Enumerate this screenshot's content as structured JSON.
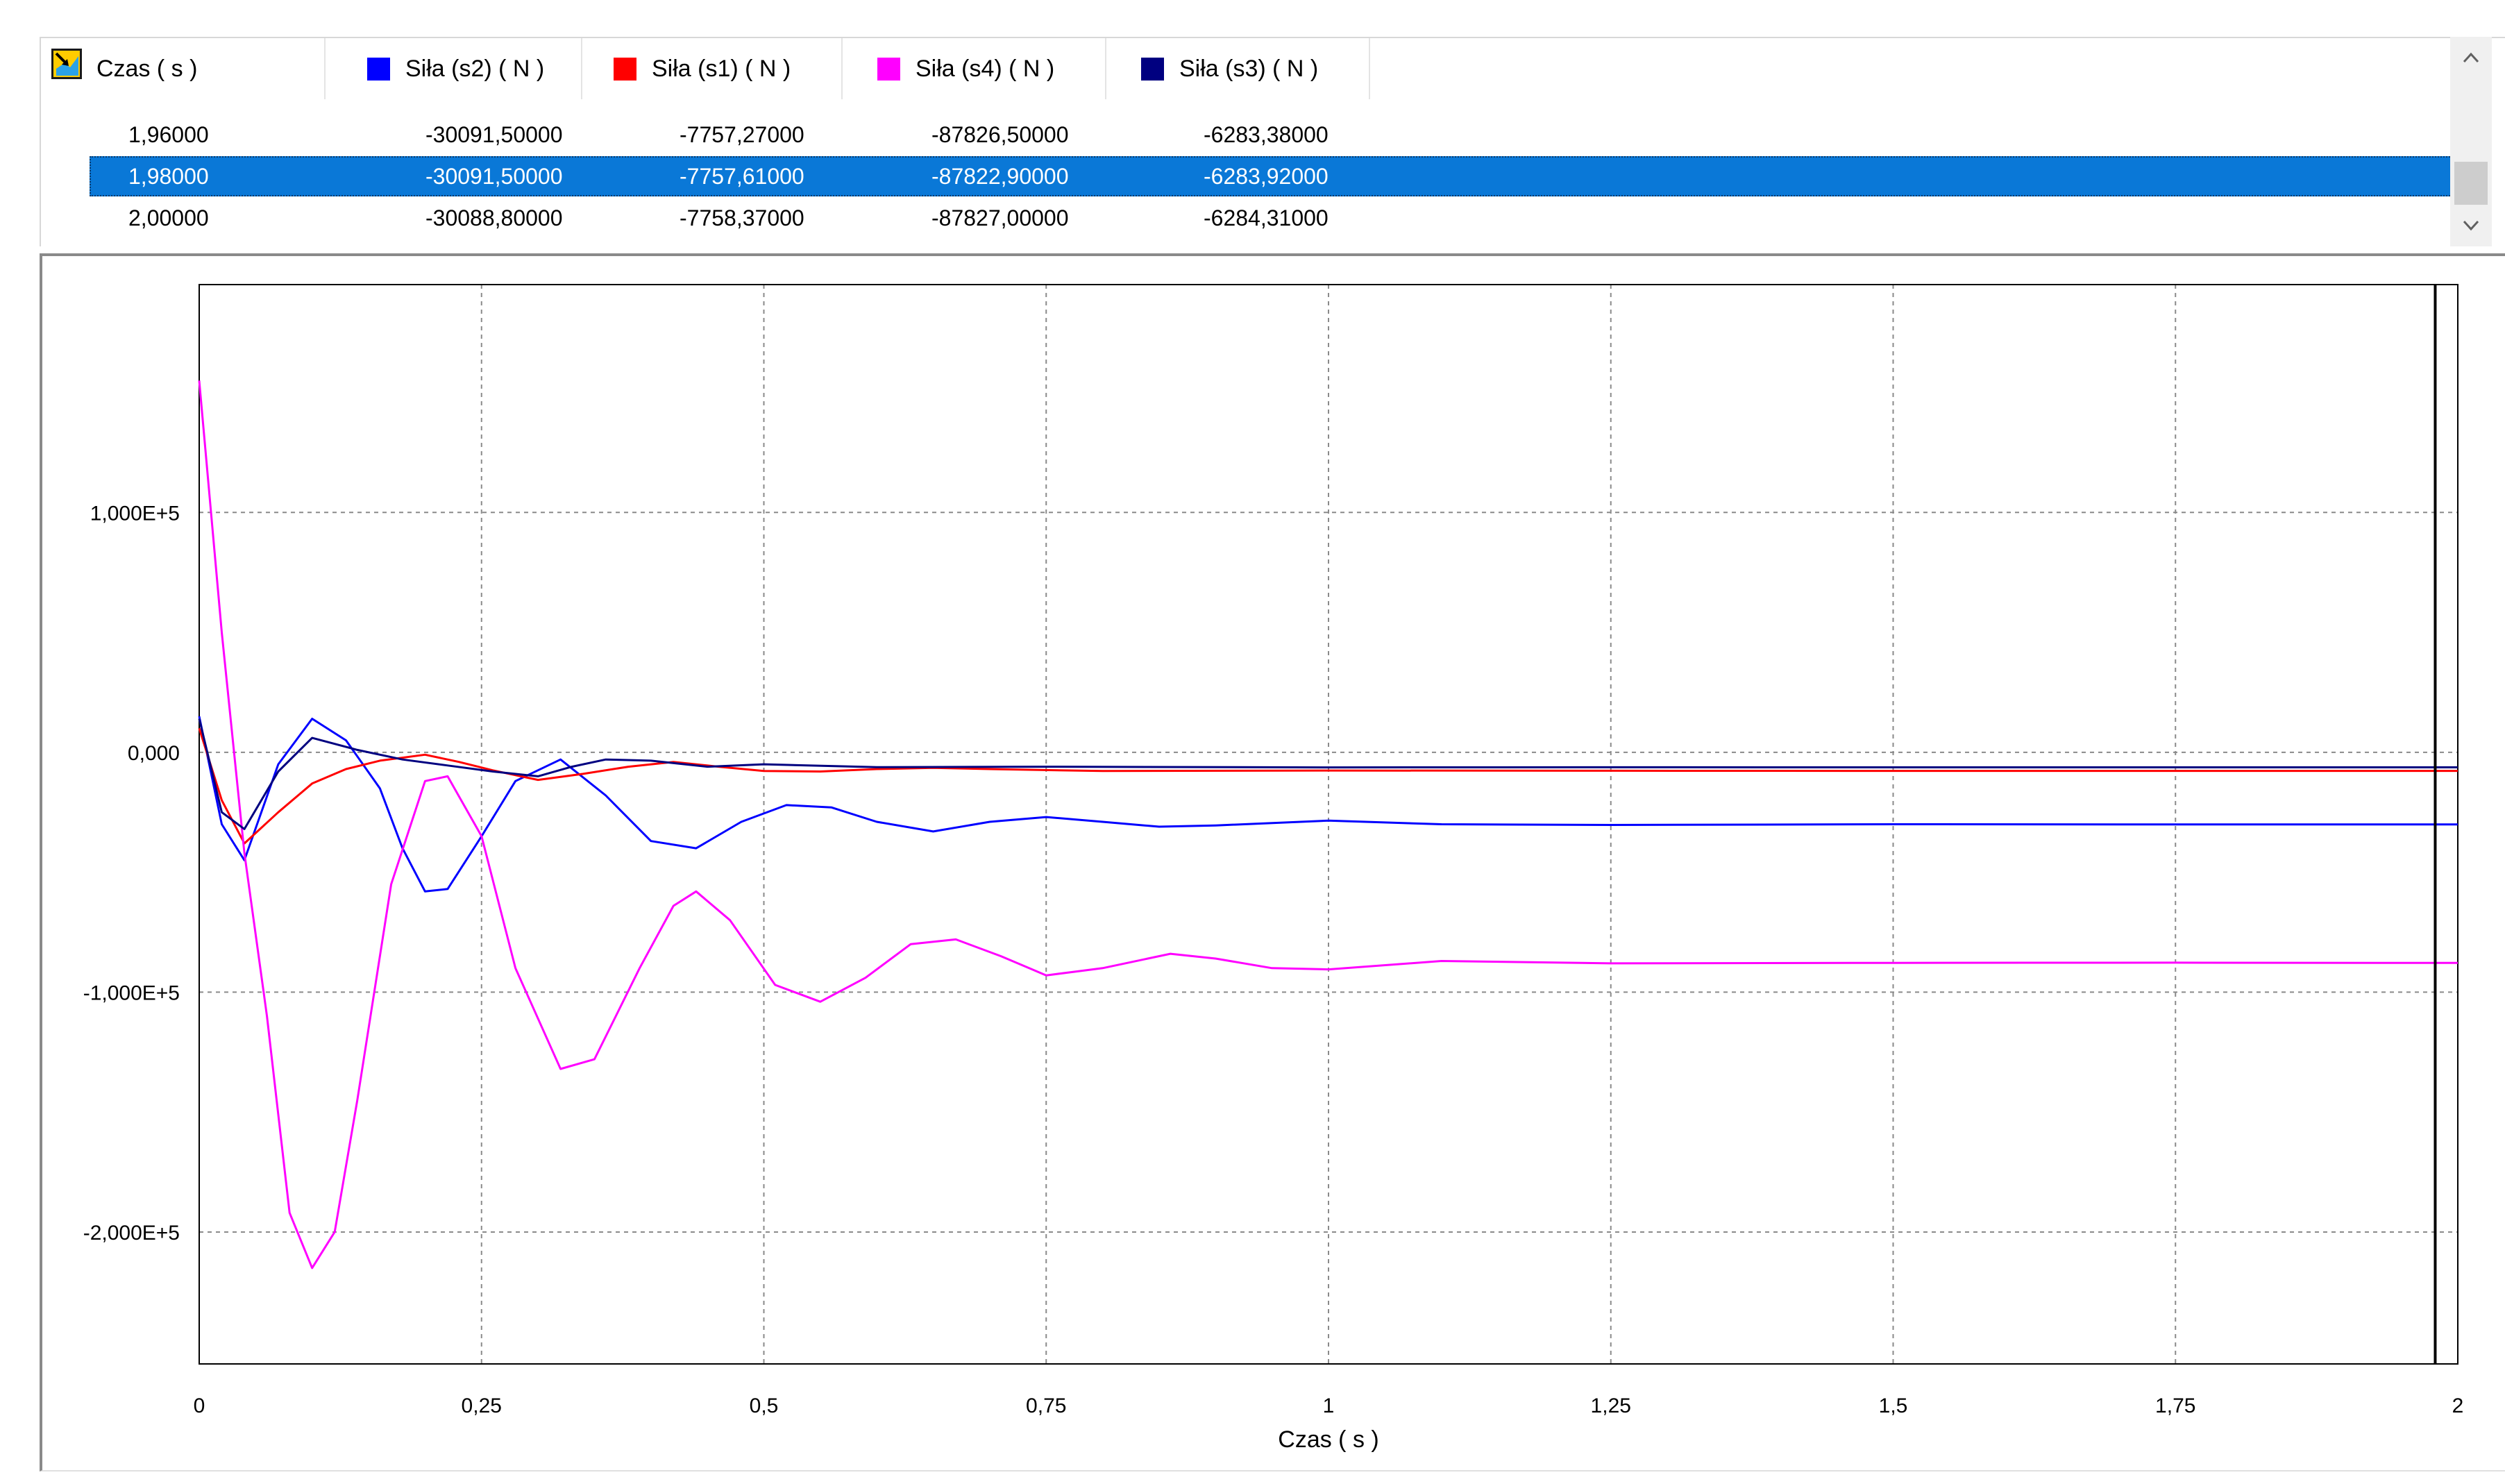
{
  "grid": {
    "columns": [
      {
        "label": "Czas ( s )",
        "color": ""
      },
      {
        "label": "Siła (s2) ( N )",
        "color": "#0000ff"
      },
      {
        "label": "Siła (s1) ( N )",
        "color": "#ff0000"
      },
      {
        "label": "Siła (s4) ( N )",
        "color": "#ff00ff"
      },
      {
        "label": "Siła (s3) ( N )",
        "color": "#000080"
      }
    ],
    "rows": [
      {
        "cells": [
          "1,96000",
          "-30091,50000",
          "-7757,27000",
          "-87826,50000",
          "-6283,38000"
        ],
        "selected": false
      },
      {
        "cells": [
          "1,98000",
          "-30091,50000",
          "-7757,61000",
          "-87822,90000",
          "-6283,92000"
        ],
        "selected": true
      },
      {
        "cells": [
          "2,00000",
          "-30088,80000",
          "-7758,37000",
          "-87827,00000",
          "-6284,31000"
        ],
        "selected": false
      }
    ],
    "scroll_up_icon": "chevron-up-icon",
    "scroll_down_icon": "chevron-down-icon"
  },
  "chart_data": {
    "type": "line",
    "xlabel": "Czas ( s )",
    "ylabel": "",
    "xlim": [
      0,
      2
    ],
    "ylim": [
      -255000,
      195000
    ],
    "grid": true,
    "x_ticks": [
      0,
      0.25,
      0.5,
      0.75,
      1,
      1.25,
      1.5,
      1.75,
      2
    ],
    "x_tick_labels": [
      "0",
      "0,25",
      "0,5",
      "0,75",
      "1",
      "1,25",
      "1,5",
      "1,75",
      "2"
    ],
    "y_ticks": [
      100000,
      0,
      -100000,
      -200000
    ],
    "y_tick_labels": [
      "1,000E+5",
      "0,000",
      "-1,000E+5",
      "-2,000E+5"
    ],
    "cursor_x": 1.98,
    "series": [
      {
        "name": "Siła (s2)",
        "color": "#0000ff",
        "points": [
          [
            0,
            15000
          ],
          [
            0.02,
            -30000
          ],
          [
            0.04,
            -45000
          ],
          [
            0.07,
            -5000
          ],
          [
            0.1,
            14000
          ],
          [
            0.13,
            5000
          ],
          [
            0.16,
            -15000
          ],
          [
            0.18,
            -40000
          ],
          [
            0.2,
            -58000
          ],
          [
            0.22,
            -57000
          ],
          [
            0.25,
            -35000
          ],
          [
            0.28,
            -12000
          ],
          [
            0.32,
            -3000
          ],
          [
            0.36,
            -18000
          ],
          [
            0.4,
            -37000
          ],
          [
            0.44,
            -40000
          ],
          [
            0.48,
            -29000
          ],
          [
            0.52,
            -22000
          ],
          [
            0.56,
            -23000
          ],
          [
            0.6,
            -29000
          ],
          [
            0.65,
            -33000
          ],
          [
            0.7,
            -29000
          ],
          [
            0.75,
            -27000
          ],
          [
            0.8,
            -29000
          ],
          [
            0.85,
            -31000
          ],
          [
            0.9,
            -30500
          ],
          [
            1,
            -28500
          ],
          [
            1.1,
            -30000
          ],
          [
            1.25,
            -30300
          ],
          [
            1.5,
            -30000
          ],
          [
            1.75,
            -30100
          ],
          [
            2,
            -30089
          ]
        ]
      },
      {
        "name": "Siła (s1)",
        "color": "#ff0000",
        "points": [
          [
            0,
            10000
          ],
          [
            0.02,
            -20000
          ],
          [
            0.04,
            -38000
          ],
          [
            0.07,
            -25000
          ],
          [
            0.1,
            -13000
          ],
          [
            0.13,
            -7000
          ],
          [
            0.16,
            -3500
          ],
          [
            0.2,
            -1000
          ],
          [
            0.23,
            -4000
          ],
          [
            0.26,
            -7500
          ],
          [
            0.3,
            -11500
          ],
          [
            0.34,
            -9000
          ],
          [
            0.38,
            -6000
          ],
          [
            0.42,
            -4000
          ],
          [
            0.46,
            -6000
          ],
          [
            0.5,
            -7800
          ],
          [
            0.55,
            -8000
          ],
          [
            0.6,
            -7000
          ],
          [
            0.65,
            -6500
          ],
          [
            0.7,
            -7000
          ],
          [
            0.8,
            -7800
          ],
          [
            1,
            -7600
          ],
          [
            1.25,
            -7700
          ],
          [
            1.5,
            -7750
          ],
          [
            1.75,
            -7760
          ],
          [
            2,
            -7758
          ]
        ]
      },
      {
        "name": "Siła (s4)",
        "color": "#ff00ff",
        "points": [
          [
            0,
            155000
          ],
          [
            0.02,
            50000
          ],
          [
            0.04,
            -42000
          ],
          [
            0.06,
            -110000
          ],
          [
            0.08,
            -192000
          ],
          [
            0.1,
            -215000
          ],
          [
            0.12,
            -200000
          ],
          [
            0.14,
            -145000
          ],
          [
            0.17,
            -55000
          ],
          [
            0.2,
            -12000
          ],
          [
            0.22,
            -10000
          ],
          [
            0.25,
            -35000
          ],
          [
            0.28,
            -90000
          ],
          [
            0.32,
            -132000
          ],
          [
            0.35,
            -128000
          ],
          [
            0.39,
            -90000
          ],
          [
            0.42,
            -64000
          ],
          [
            0.44,
            -58000
          ],
          [
            0.47,
            -70000
          ],
          [
            0.51,
            -97000
          ],
          [
            0.55,
            -104000
          ],
          [
            0.59,
            -94000
          ],
          [
            0.63,
            -80000
          ],
          [
            0.67,
            -78000
          ],
          [
            0.71,
            -85000
          ],
          [
            0.75,
            -93000
          ],
          [
            0.8,
            -90000
          ],
          [
            0.86,
            -84000
          ],
          [
            0.9,
            -86000
          ],
          [
            0.95,
            -90000
          ],
          [
            1,
            -90500
          ],
          [
            1.1,
            -87000
          ],
          [
            1.25,
            -88000
          ],
          [
            1.5,
            -87800
          ],
          [
            1.75,
            -87700
          ],
          [
            2,
            -87827
          ]
        ]
      },
      {
        "name": "Siła (s3)",
        "color": "#000080",
        "points": [
          [
            0,
            14000
          ],
          [
            0.02,
            -25000
          ],
          [
            0.04,
            -32000
          ],
          [
            0.07,
            -8000
          ],
          [
            0.1,
            6000
          ],
          [
            0.14,
            1000
          ],
          [
            0.18,
            -3000
          ],
          [
            0.22,
            -5500
          ],
          [
            0.26,
            -8000
          ],
          [
            0.3,
            -10000
          ],
          [
            0.33,
            -6000
          ],
          [
            0.36,
            -3000
          ],
          [
            0.4,
            -3500
          ],
          [
            0.45,
            -6000
          ],
          [
            0.5,
            -5000
          ],
          [
            0.6,
            -6200
          ],
          [
            0.75,
            -6000
          ],
          [
            1,
            -6300
          ],
          [
            1.25,
            -6250
          ],
          [
            1.5,
            -6280
          ],
          [
            1.75,
            -6283
          ],
          [
            2,
            -6284
          ]
        ]
      }
    ]
  }
}
